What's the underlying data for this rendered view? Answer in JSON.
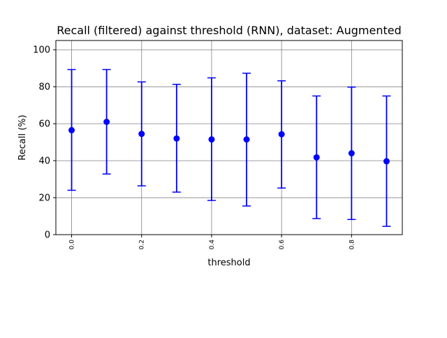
{
  "chart_data": {
    "type": "scatter",
    "title": "Recall (filtered) against threshold (RNN), dataset: Augmented",
    "xlabel": "threshold",
    "ylabel": "Recall (%)",
    "xlim": [
      -0.045,
      0.945
    ],
    "ylim": [
      0,
      105
    ],
    "xticks": [
      0.0,
      0.2,
      0.4,
      0.6,
      0.8
    ],
    "xtick_labels": [
      "0.0",
      "0.2",
      "0.4",
      "0.6",
      "0.8"
    ],
    "yticks": [
      0,
      20,
      40,
      60,
      80,
      100
    ],
    "ytick_labels": [
      "0",
      "20",
      "40",
      "60",
      "80",
      "100"
    ],
    "grid": true,
    "series": [
      {
        "color": "#0000ff",
        "x": [
          0.0,
          0.1,
          0.2,
          0.3,
          0.4,
          0.5,
          0.6,
          0.7,
          0.8,
          0.9
        ],
        "y": [
          56.5,
          61.0,
          54.5,
          52.0,
          51.5,
          51.5,
          54.3,
          41.8,
          44.0,
          39.7
        ],
        "err_low": [
          24.0,
          32.8,
          26.4,
          23.0,
          18.5,
          15.5,
          25.2,
          8.7,
          8.2,
          4.5
        ],
        "err_high": [
          89.3,
          89.3,
          82.6,
          81.3,
          84.8,
          87.3,
          83.2,
          75.0,
          79.8,
          75.0
        ]
      }
    ]
  }
}
